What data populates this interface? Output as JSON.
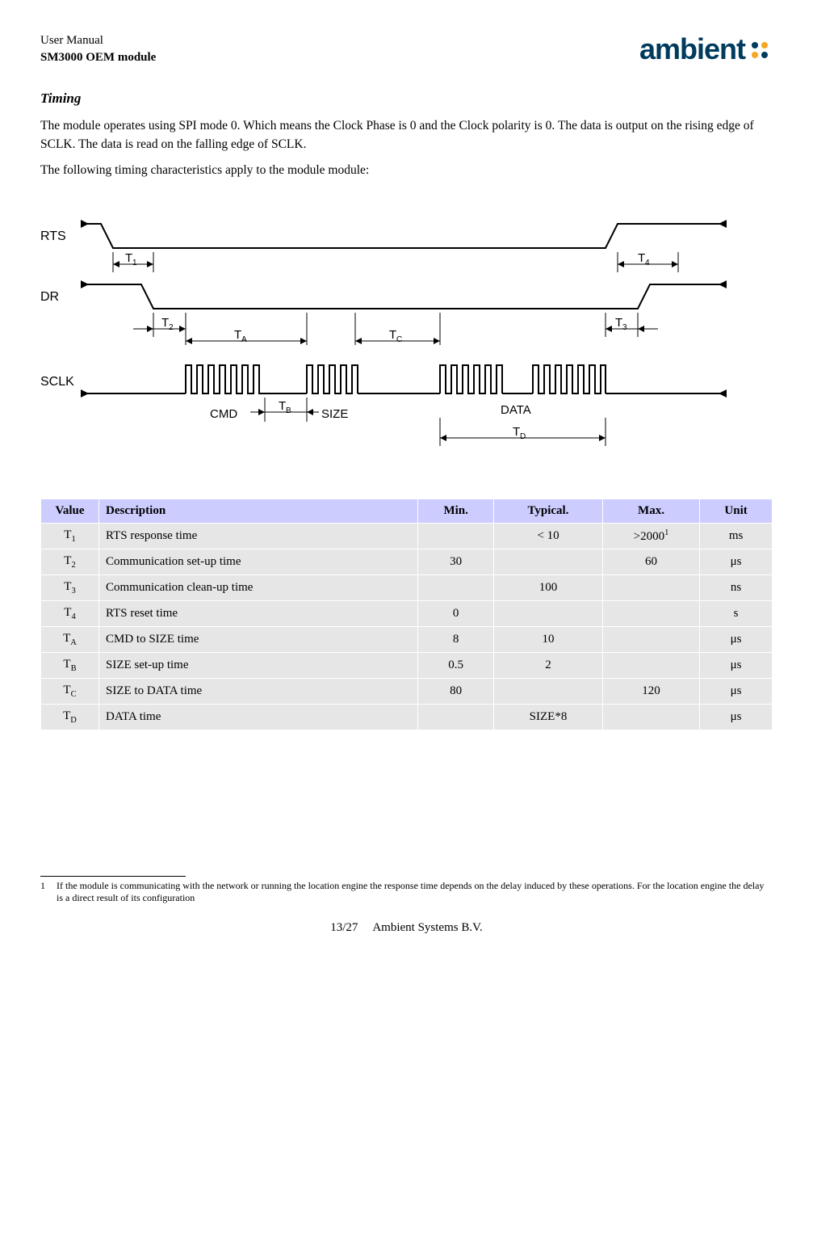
{
  "header": {
    "line1": "User Manual",
    "line2": "SM3000 OEM module",
    "logo_text": "ambient",
    "logo_blue": "#003a5d",
    "logo_orange": "#f5a623"
  },
  "section_title": "Timing",
  "para1": "The module operates using SPI mode 0. Which means the Clock Phase is 0 and the Clock polarity is 0. The data is output on the rising  edge of SCLK. The data is read on the falling edge of SCLK.",
  "para2": "The following timing characteristics apply to the module module:",
  "diagram": {
    "signals": [
      "RTS",
      "DR",
      "SCLK"
    ],
    "labels": [
      "T",
      "1",
      "T",
      "2",
      "T",
      "3",
      "T",
      "4",
      "T",
      "A",
      "T",
      "B",
      "T",
      "C",
      "T",
      "D"
    ],
    "sclk_groups": [
      "CMD",
      "SIZE",
      "DATA"
    ]
  },
  "table": {
    "headers": [
      "Value",
      "Description",
      "Min.",
      "Typical.",
      "Max.",
      "Unit"
    ],
    "rows": [
      {
        "value": "T",
        "sub": "1",
        "desc": "RTS response time",
        "min": "",
        "typ": "< 10",
        "max_base": ">2000",
        "max_sup": "1",
        "unit": "ms"
      },
      {
        "value": "T",
        "sub": "2",
        "desc": "Communication set-up time",
        "min": "30",
        "typ": "",
        "max": "60",
        "unit": "μs"
      },
      {
        "value": "T",
        "sub": "3",
        "desc": "Communication clean-up time",
        "min": "",
        "typ": "100",
        "max": "",
        "unit": "ns"
      },
      {
        "value": "T",
        "sub": "4",
        "desc": "RTS reset time",
        "min": "0",
        "typ": "",
        "max": "",
        "unit": "s"
      },
      {
        "value": "T",
        "sub": "A",
        "desc": "CMD to SIZE time",
        "min": "8",
        "typ": "10",
        "max": "",
        "unit": "μs"
      },
      {
        "value": "T",
        "sub": "B",
        "desc": "SIZE set-up time",
        "min": "0.5",
        "typ": "2",
        "max": "",
        "unit": "μs"
      },
      {
        "value": "T",
        "sub": "C",
        "desc": "SIZE to DATA time",
        "min": "80",
        "typ": "",
        "max": "120",
        "unit": "μs"
      },
      {
        "value": "T",
        "sub": "D",
        "desc": "DATA time",
        "min": "",
        "typ": "SIZE*8",
        "max": "",
        "unit": "μs"
      }
    ]
  },
  "footnote": {
    "num": "1",
    "text": "If the module is communicating with the network or running the location engine the response time depends on the delay induced by these operations. For the location engine the delay is a direct result of its configuration"
  },
  "footer": {
    "page": "13/27",
    "company": "Ambient Systems B.V."
  }
}
